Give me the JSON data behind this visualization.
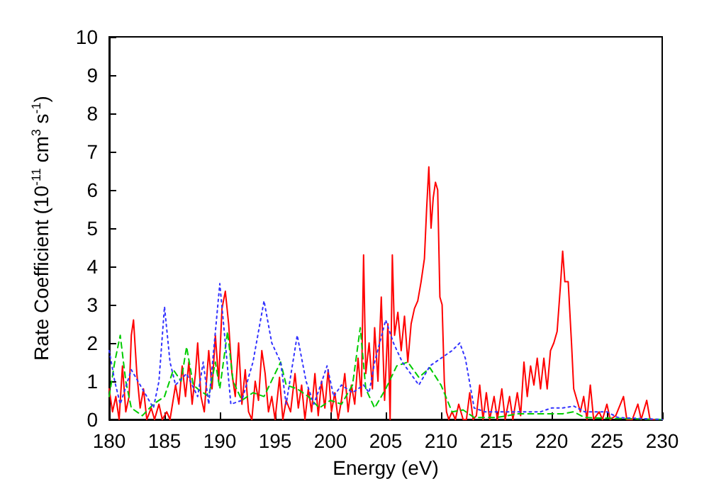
{
  "chart_data": {
    "type": "line",
    "xlabel": "Energy (eV)",
    "ylabel": "Rate Coefficient (10$^{-11}$ cm$^{3}$ s$^{-1}$)",
    "xlim": [
      180,
      230
    ],
    "xticks": [
      180,
      185,
      190,
      195,
      200,
      205,
      210,
      215,
      220,
      225,
      230
    ],
    "ylim": [
      0,
      10
    ],
    "yticks": [
      0,
      1,
      2,
      3,
      4,
      5,
      6,
      7,
      8,
      9,
      10
    ],
    "grid": false,
    "marker": "none",
    "series": [
      {
        "color": "#ff0000",
        "line_style": "solid",
        "x": [
          180,
          180.3,
          180.6,
          180.9,
          181.2,
          181.5,
          181.8,
          182,
          182.2,
          182.5,
          182.8,
          183.1,
          183.4,
          183.8,
          184.1,
          184.5,
          184.8,
          185.2,
          185.5,
          186,
          186.3,
          186.6,
          186.9,
          187.2,
          187.5,
          187.8,
          188,
          188.3,
          188.6,
          189,
          189.3,
          189.6,
          189.9,
          190.2,
          190.5,
          190.8,
          191.1,
          191.4,
          191.7,
          192,
          192.3,
          192.6,
          192.9,
          193.2,
          193.5,
          193.8,
          194.1,
          194.4,
          194.7,
          195,
          195.4,
          195.7,
          196,
          196.4,
          196.8,
          197.1,
          197.4,
          197.7,
          198,
          198.3,
          198.6,
          198.9,
          199.2,
          199.5,
          199.8,
          200.1,
          200.4,
          200.7,
          201,
          201.3,
          201.6,
          201.9,
          202.2,
          202.5,
          202.8,
          203,
          203.2,
          203.5,
          203.8,
          204,
          204.3,
          204.6,
          204.9,
          205.2,
          205.4,
          205.6,
          205.8,
          206.1,
          206.4,
          206.7,
          207,
          207.3,
          207.6,
          207.9,
          208.2,
          208.5,
          208.7,
          208.9,
          209.1,
          209.3,
          209.5,
          209.7,
          209.9,
          210.1,
          210.3,
          210.5,
          210.7,
          211,
          211.3,
          211.6,
          212,
          212.3,
          212.6,
          212.9,
          213.2,
          213.5,
          213.8,
          214.1,
          214.4,
          214.8,
          215.1,
          215.5,
          215.8,
          216.2,
          216.5,
          216.9,
          217.2,
          217.5,
          217.8,
          218.1,
          218.4,
          218.7,
          219,
          219.3,
          219.6,
          219.9,
          220.2,
          220.5,
          220.8,
          221,
          221.2,
          221.5,
          221.8,
          222,
          222.3,
          222.6,
          222.9,
          223.2,
          223.5,
          223.8,
          224.3,
          224.6,
          225,
          225.3,
          225.8,
          226.5,
          226.8,
          227.3,
          227.8,
          228.1,
          228.6,
          228.9,
          229.5,
          230
        ],
        "values": [
          0.8,
          0.2,
          0.6,
          0,
          1.4,
          0.2,
          0.6,
          2.2,
          2.6,
          1.2,
          0.3,
          0.8,
          0,
          0.3,
          0,
          0.4,
          0,
          0.2,
          0,
          0.9,
          0.4,
          1.4,
          0.6,
          1.5,
          0.4,
          1.2,
          2.0,
          0.6,
          0.2,
          1.8,
          0.8,
          2.2,
          1.0,
          2.9,
          3.35,
          2.5,
          1.2,
          0.6,
          2.0,
          0.4,
          1.3,
          0.2,
          0,
          1.0,
          0.5,
          1.8,
          1.2,
          0.2,
          0.6,
          0,
          1.1,
          0,
          0.5,
          0.2,
          1.2,
          0.3,
          0.9,
          0,
          0.8,
          0.2,
          1.2,
          0.1,
          1.0,
          0.3,
          1.3,
          0.2,
          0.7,
          0,
          0.5,
          1.2,
          0.2,
          0.9,
          0.4,
          1.6,
          0.6,
          4.3,
          1.2,
          2.0,
          0.8,
          2.4,
          1.0,
          3.2,
          0.5,
          2.5,
          0,
          4.3,
          2.2,
          2.8,
          1.8,
          2.7,
          1.5,
          2.5,
          2.9,
          3.1,
          3.6,
          4.2,
          5.5,
          6.6,
          5.0,
          5.8,
          6.2,
          6.0,
          3.2,
          3.0,
          1.0,
          0.2,
          0,
          0.2,
          0,
          0.4,
          0,
          0,
          0.7,
          0,
          0.1,
          0.9,
          0,
          0.7,
          0,
          0.6,
          0,
          0.8,
          0,
          0.6,
          0,
          0.7,
          0.1,
          1.5,
          0.6,
          1.4,
          0.9,
          1.6,
          0.8,
          1.6,
          0.8,
          1.8,
          2.0,
          2.3,
          3.5,
          4.4,
          3.6,
          3.6,
          2.0,
          0.8,
          0.5,
          0.2,
          0.6,
          0,
          0.9,
          0,
          0.2,
          0,
          0.4,
          0,
          0.1,
          0.6,
          0,
          0,
          0.4,
          0,
          0.5,
          0,
          0,
          0
        ]
      },
      {
        "color": "#00cc00",
        "line_style": "dashed",
        "x": [
          180,
          180.5,
          181,
          181.5,
          182,
          183,
          184,
          185,
          185.8,
          186.5,
          187,
          187.6,
          188,
          189,
          189.6,
          190,
          190.7,
          191.2,
          192,
          193,
          194,
          195.5,
          196,
          197,
          198,
          199,
          200,
          201,
          202,
          202.7,
          203.2,
          204,
          205,
          206,
          207,
          208,
          209,
          210,
          211,
          212,
          213,
          215,
          217,
          219,
          221,
          222,
          223,
          230
        ],
        "values": [
          0.6,
          1.5,
          2.2,
          1.0,
          0.3,
          0.1,
          0.4,
          0.6,
          1.3,
          1.0,
          1.9,
          0.9,
          0.8,
          0.6,
          1.5,
          0.8,
          2.3,
          1.0,
          0.5,
          0.7,
          0.6,
          1.5,
          0.9,
          0.8,
          0.6,
          0.3,
          0.5,
          0.4,
          0.9,
          2.4,
          0.8,
          0.3,
          0.8,
          1.4,
          1.5,
          1.1,
          1.35,
          0.9,
          0.2,
          0.25,
          0.05,
          0.05,
          0.15,
          0.15,
          0.15,
          0.2,
          0.05,
          0
        ]
      },
      {
        "color": "#3333ff",
        "line_style": "dotted",
        "x": [
          180,
          180.5,
          181,
          182,
          183,
          184,
          184.5,
          185,
          185.5,
          186,
          187,
          188,
          188.5,
          189,
          190,
          190.5,
          191,
          192,
          193,
          194,
          194.7,
          195.5,
          196,
          197,
          197.8,
          198.5,
          199,
          199.7,
          200.3,
          201,
          202,
          203,
          203.5,
          204,
          205,
          205.7,
          206.5,
          207,
          208,
          209,
          210,
          211,
          211.7,
          212.2,
          213,
          214,
          215,
          217,
          219,
          220,
          221,
          222,
          223,
          225,
          226,
          230
        ],
        "values": [
          1.8,
          1.0,
          0.4,
          1.3,
          0.8,
          0.3,
          1.0,
          2.95,
          1.5,
          0.9,
          1.2,
          0.6,
          1.5,
          0.4,
          3.55,
          2.0,
          0.4,
          0.5,
          1.5,
          3.1,
          2.0,
          1.5,
          0.4,
          2.2,
          1.0,
          0.4,
          0.8,
          1.4,
          0.6,
          0.9,
          0.7,
          0.9,
          0.7,
          1.5,
          2.6,
          2.0,
          1.5,
          1.3,
          0.9,
          1.4,
          1.6,
          1.8,
          2.0,
          1.6,
          0.3,
          0.2,
          0.2,
          0.2,
          0.2,
          0.3,
          0.3,
          0.35,
          0.2,
          0.2,
          0.05,
          0
        ]
      }
    ]
  }
}
